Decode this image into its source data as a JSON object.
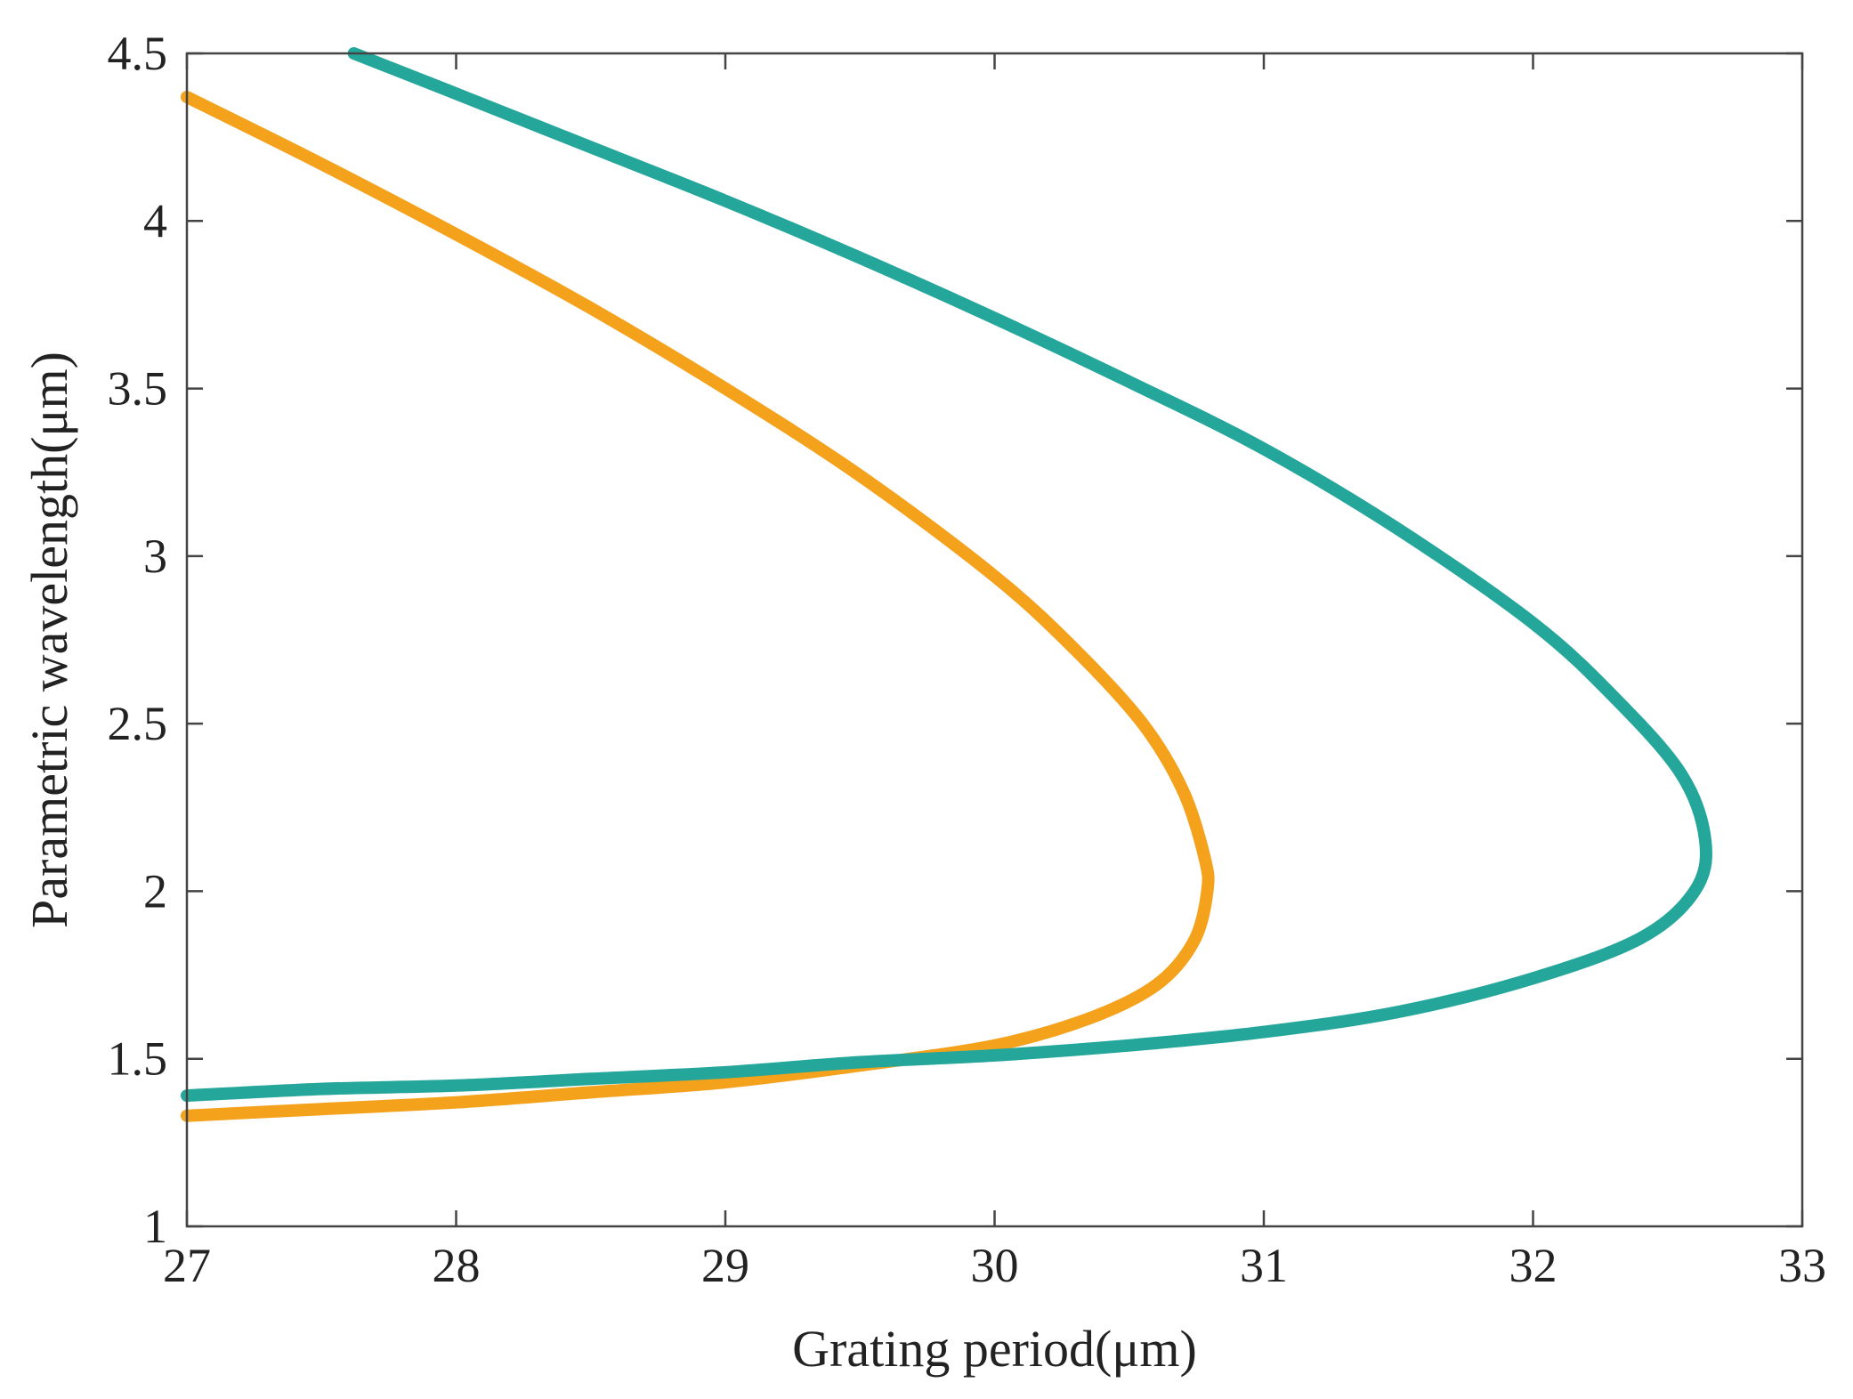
{
  "chart_data": {
    "type": "line",
    "title": "",
    "xlabel": "Grating period(μm)",
    "ylabel": "Parametric wavelength(μm)",
    "xlim": [
      27,
      33
    ],
    "ylim": [
      1,
      4.5
    ],
    "xticks": [
      "27",
      "28",
      "29",
      "30",
      "31",
      "32",
      "33"
    ],
    "yticks": [
      "1",
      "1.5",
      "2",
      "2.5",
      "3",
      "3.5",
      "4",
      "4.5"
    ],
    "grid": false,
    "legend": "none",
    "series": [
      {
        "color": "#F4A11C",
        "points": [
          [
            27.0,
            4.37
          ],
          [
            27.5,
            4.17
          ],
          [
            28.0,
            3.96
          ],
          [
            28.5,
            3.74
          ],
          [
            29.0,
            3.5
          ],
          [
            29.5,
            3.24
          ],
          [
            30.0,
            2.94
          ],
          [
            30.3,
            2.72
          ],
          [
            30.55,
            2.5
          ],
          [
            30.7,
            2.3
          ],
          [
            30.78,
            2.1
          ],
          [
            30.79,
            2.0
          ],
          [
            30.74,
            1.85
          ],
          [
            30.6,
            1.72
          ],
          [
            30.35,
            1.62
          ],
          [
            30.0,
            1.54
          ],
          [
            29.5,
            1.48
          ],
          [
            29.0,
            1.43
          ],
          [
            28.5,
            1.4
          ],
          [
            28.0,
            1.37
          ],
          [
            27.5,
            1.35
          ],
          [
            27.0,
            1.33
          ]
        ]
      },
      {
        "color": "#24A79A",
        "points": [
          [
            27.62,
            4.5
          ],
          [
            28.0,
            4.38
          ],
          [
            28.5,
            4.22
          ],
          [
            29.0,
            4.06
          ],
          [
            29.5,
            3.89
          ],
          [
            30.0,
            3.71
          ],
          [
            30.5,
            3.52
          ],
          [
            31.0,
            3.32
          ],
          [
            31.5,
            3.08
          ],
          [
            32.0,
            2.8
          ],
          [
            32.3,
            2.58
          ],
          [
            32.55,
            2.35
          ],
          [
            32.64,
            2.15
          ],
          [
            32.6,
            2.0
          ],
          [
            32.4,
            1.86
          ],
          [
            32.0,
            1.74
          ],
          [
            31.5,
            1.64
          ],
          [
            31.0,
            1.58
          ],
          [
            30.5,
            1.54
          ],
          [
            30.0,
            1.51
          ],
          [
            29.5,
            1.49
          ],
          [
            29.0,
            1.46
          ],
          [
            28.5,
            1.44
          ],
          [
            28.0,
            1.42
          ],
          [
            27.5,
            1.41
          ],
          [
            27.0,
            1.39
          ]
        ]
      }
    ]
  }
}
